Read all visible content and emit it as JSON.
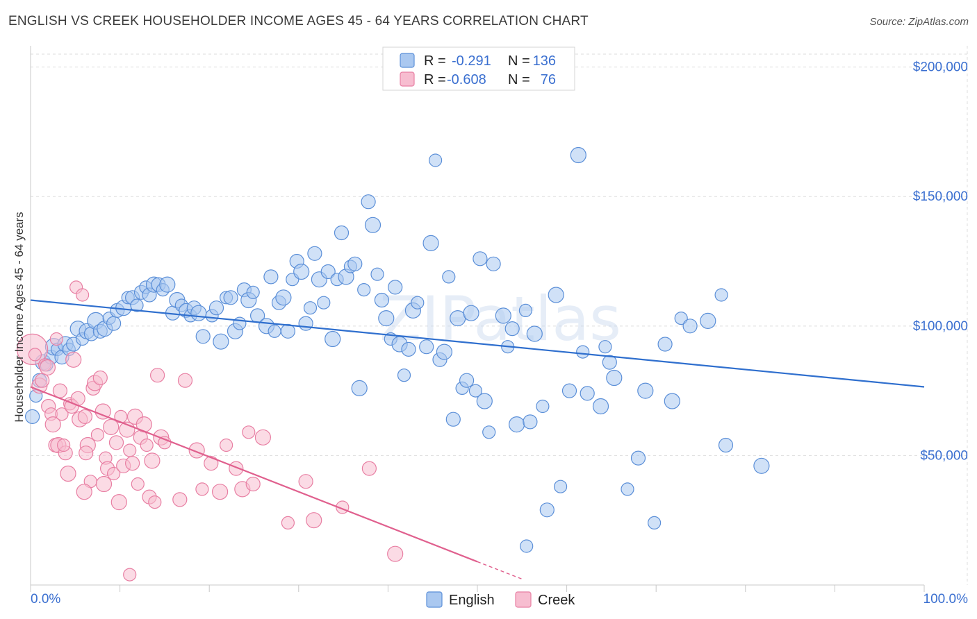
{
  "title": "ENGLISH VS CREEK HOUSEHOLDER INCOME AGES 45 - 64 YEARS CORRELATION CHART",
  "source": "Source: ZipAtlas.com",
  "watermark": "ZIPatlas",
  "colors": {
    "english_fill": "#aac8f0",
    "english_stroke": "#5b8fd8",
    "english_line": "#2f6fce",
    "creek_fill": "#f7bdd0",
    "creek_stroke": "#e87fa3",
    "creek_line": "#e0608e",
    "axis_text": "#3a6fd0",
    "grid": "#dddddd"
  },
  "legend": {
    "rows": [
      {
        "r_label": "R =",
        "r_value": "-0.291",
        "n_label": "N =",
        "n_value": "136"
      },
      {
        "r_label": "R =",
        "r_value": "-0.608",
        "n_label": "N =",
        "n_value": "76"
      }
    ]
  },
  "bottom_legend": [
    "English",
    "Creek"
  ],
  "chart_data": {
    "type": "scatter",
    "title": "ENGLISH VS CREEK HOUSEHOLDER INCOME AGES 45 - 64 YEARS CORRELATION CHART",
    "xlabel": "",
    "ylabel": "Householder Income Ages 45 - 64 years",
    "xlim": [
      0,
      100
    ],
    "ylim": [
      0,
      205000
    ],
    "x_tick_labels": [
      "0.0%",
      "100.0%"
    ],
    "y_ticks": [
      50000,
      100000,
      150000,
      200000
    ],
    "y_tick_labels": [
      "$50,000",
      "$100,000",
      "$150,000",
      "$200,000"
    ],
    "grid": "horizontal dashed",
    "legend_position": "top-center",
    "series": [
      {
        "name": "English",
        "r": -0.291,
        "n": 136,
        "trend": {
          "x": [
            0,
            100
          ],
          "y": [
            110000,
            76500
          ]
        },
        "points": [
          [
            0.2,
            65000,
            10
          ],
          [
            0.6,
            73000,
            9
          ],
          [
            1.0,
            79000,
            10
          ],
          [
            1.4,
            86000,
            11
          ],
          [
            1.8,
            85000,
            9
          ],
          [
            2.3,
            88000,
            10
          ],
          [
            2.6,
            92000,
            12
          ],
          [
            3.0,
            91000,
            9
          ],
          [
            3.5,
            88000,
            10
          ],
          [
            3.9,
            93000,
            11
          ],
          [
            4.3,
            91000,
            9
          ],
          [
            4.8,
            93000,
            10
          ],
          [
            5.3,
            99000,
            11
          ],
          [
            5.8,
            95000,
            9
          ],
          [
            6.3,
            98000,
            11
          ],
          [
            6.8,
            97000,
            10
          ],
          [
            7.3,
            102000,
            12
          ],
          [
            7.8,
            98000,
            10
          ],
          [
            8.3,
            99000,
            11
          ],
          [
            8.8,
            103000,
            9
          ],
          [
            9.3,
            101000,
            10
          ],
          [
            9.7,
            106000,
            10
          ],
          [
            10.4,
            107000,
            11
          ],
          [
            10.9,
            111000,
            9
          ],
          [
            11.4,
            111000,
            10
          ],
          [
            11.9,
            108000,
            9
          ],
          [
            12.4,
            113000,
            10
          ],
          [
            12.9,
            115000,
            9
          ],
          [
            13.3,
            112000,
            10
          ],
          [
            13.8,
            116000,
            11
          ],
          [
            14.3,
            116000,
            10
          ],
          [
            14.8,
            114000,
            9
          ],
          [
            15.3,
            116000,
            11
          ],
          [
            15.9,
            105000,
            10
          ],
          [
            16.4,
            110000,
            11
          ],
          [
            16.9,
            108000,
            9
          ],
          [
            17.4,
            106000,
            10
          ],
          [
            17.9,
            104000,
            9
          ],
          [
            18.3,
            107000,
            10
          ],
          [
            18.8,
            105000,
            11
          ],
          [
            19.3,
            96000,
            10
          ],
          [
            20.3,
            104000,
            9
          ],
          [
            20.8,
            107000,
            10
          ],
          [
            21.3,
            94000,
            11
          ],
          [
            21.9,
            111000,
            9
          ],
          [
            22.4,
            111000,
            10
          ],
          [
            22.9,
            98000,
            11
          ],
          [
            23.4,
            101000,
            9
          ],
          [
            23.9,
            114000,
            10
          ],
          [
            24.4,
            110000,
            11
          ],
          [
            24.9,
            113000,
            9
          ],
          [
            25.4,
            104000,
            10
          ],
          [
            26.4,
            100000,
            11
          ],
          [
            26.9,
            119000,
            10
          ],
          [
            27.3,
            98000,
            9
          ],
          [
            27.8,
            109000,
            10
          ],
          [
            28.3,
            111000,
            11
          ],
          [
            28.8,
            98000,
            10
          ],
          [
            29.3,
            118000,
            9
          ],
          [
            29.8,
            125000,
            10
          ],
          [
            30.3,
            121000,
            11
          ],
          [
            30.8,
            101000,
            10
          ],
          [
            31.3,
            107000,
            9
          ],
          [
            31.8,
            128000,
            10
          ],
          [
            32.3,
            118000,
            11
          ],
          [
            32.8,
            109000,
            9
          ],
          [
            33.3,
            121000,
            10
          ],
          [
            33.8,
            95000,
            11
          ],
          [
            34.3,
            118000,
            9
          ],
          [
            34.8,
            136000,
            10
          ],
          [
            35.3,
            119000,
            11
          ],
          [
            35.8,
            123000,
            9
          ],
          [
            36.3,
            124000,
            10
          ],
          [
            36.8,
            76000,
            11
          ],
          [
            37.3,
            114000,
            9
          ],
          [
            37.8,
            148000,
            10
          ],
          [
            38.3,
            139000,
            11
          ],
          [
            38.8,
            120000,
            9
          ],
          [
            39.3,
            110000,
            10
          ],
          [
            39.8,
            103000,
            11
          ],
          [
            40.3,
            95000,
            9
          ],
          [
            40.8,
            115000,
            10
          ],
          [
            41.3,
            93000,
            11
          ],
          [
            41.8,
            81000,
            9
          ],
          [
            42.3,
            91000,
            10
          ],
          [
            42.8,
            106000,
            11
          ],
          [
            43.3,
            109000,
            9
          ],
          [
            44.3,
            92000,
            10
          ],
          [
            44.8,
            132000,
            11
          ],
          [
            45.3,
            164000,
            9
          ],
          [
            45.8,
            87000,
            10
          ],
          [
            46.3,
            90000,
            11
          ],
          [
            46.8,
            119000,
            9
          ],
          [
            47.3,
            64000,
            10
          ],
          [
            47.8,
            103000,
            11
          ],
          [
            48.3,
            76000,
            9
          ],
          [
            48.8,
            79000,
            10
          ],
          [
            49.3,
            105000,
            11
          ],
          [
            49.8,
            75000,
            9
          ],
          [
            50.3,
            126000,
            10
          ],
          [
            50.8,
            71000,
            11
          ],
          [
            51.3,
            59000,
            9
          ],
          [
            51.8,
            124000,
            10
          ],
          [
            52.9,
            104000,
            11
          ],
          [
            53.4,
            92000,
            9
          ],
          [
            53.9,
            99000,
            10
          ],
          [
            54.4,
            62000,
            11
          ],
          [
            55.4,
            106000,
            9
          ],
          [
            55.9,
            63000,
            10
          ],
          [
            56.4,
            97000,
            11
          ],
          [
            57.3,
            69000,
            9
          ],
          [
            57.8,
            29000,
            10
          ],
          [
            58.8,
            112000,
            11
          ],
          [
            59.3,
            38000,
            9
          ],
          [
            60.3,
            75000,
            10
          ],
          [
            61.3,
            166000,
            11
          ],
          [
            61.8,
            90000,
            9
          ],
          [
            62.3,
            74000,
            10
          ],
          [
            63.8,
            69000,
            11
          ],
          [
            64.3,
            92000,
            9
          ],
          [
            64.8,
            86000,
            10
          ],
          [
            65.3,
            80000,
            11
          ],
          [
            66.8,
            37000,
            9
          ],
          [
            68.0,
            49000,
            10
          ],
          [
            68.8,
            75000,
            11
          ],
          [
            69.8,
            24000,
            9
          ],
          [
            71.0,
            93000,
            10
          ],
          [
            71.8,
            71000,
            11
          ],
          [
            72.8,
            103000,
            9
          ],
          [
            73.8,
            100000,
            10
          ],
          [
            75.8,
            102000,
            11
          ],
          [
            77.3,
            112000,
            9
          ],
          [
            77.8,
            54000,
            10
          ],
          [
            81.8,
            46000,
            11
          ],
          [
            55.5,
            15000,
            9
          ]
        ]
      },
      {
        "name": "Creek",
        "r": -0.608,
        "n": 76,
        "trend": {
          "x": [
            0,
            50
          ],
          "y": [
            76500,
            9000
          ]
        },
        "trend_dashed": {
          "x": [
            50,
            55
          ],
          "y": [
            9000,
            2300
          ]
        },
        "points": [
          [
            0.2,
            91000,
            22
          ],
          [
            0.5,
            89000,
            9
          ],
          [
            1.0,
            77000,
            11
          ],
          [
            1.3,
            79000,
            10
          ],
          [
            1.6,
            85000,
            9
          ],
          [
            1.9,
            84000,
            11
          ],
          [
            2.0,
            69000,
            10
          ],
          [
            2.3,
            66000,
            9
          ],
          [
            2.5,
            62000,
            11
          ],
          [
            2.8,
            54000,
            10
          ],
          [
            2.9,
            95000,
            9
          ],
          [
            3.1,
            54000,
            11
          ],
          [
            3.3,
            75000,
            10
          ],
          [
            3.5,
            66000,
            9
          ],
          [
            3.9,
            51000,
            10
          ],
          [
            4.2,
            43000,
            11
          ],
          [
            4.4,
            70000,
            9
          ],
          [
            4.6,
            69000,
            10
          ],
          [
            4.8,
            87000,
            11
          ],
          [
            5.1,
            115000,
            9
          ],
          [
            5.3,
            72000,
            10
          ],
          [
            5.5,
            64000,
            11
          ],
          [
            5.8,
            112000,
            9
          ],
          [
            6.1,
            65000,
            10
          ],
          [
            6.4,
            54000,
            11
          ],
          [
            6.7,
            40000,
            9
          ],
          [
            7.0,
            76000,
            10
          ],
          [
            7.2,
            78000,
            11
          ],
          [
            7.5,
            58000,
            9
          ],
          [
            7.8,
            80000,
            10
          ],
          [
            8.1,
            67000,
            11
          ],
          [
            8.4,
            49000,
            9
          ],
          [
            8.6,
            45000,
            10
          ],
          [
            9.0,
            61000,
            11
          ],
          [
            9.3,
            43000,
            9
          ],
          [
            9.6,
            55000,
            10
          ],
          [
            9.9,
            32000,
            11
          ],
          [
            10.1,
            65000,
            9
          ],
          [
            10.4,
            46000,
            10
          ],
          [
            10.8,
            60000,
            11
          ],
          [
            11.1,
            52000,
            9
          ],
          [
            11.4,
            47000,
            10
          ],
          [
            11.7,
            65000,
            11
          ],
          [
            12.0,
            39000,
            9
          ],
          [
            12.3,
            57000,
            10
          ],
          [
            12.7,
            62000,
            11
          ],
          [
            13.0,
            54000,
            9
          ],
          [
            13.3,
            34000,
            10
          ],
          [
            13.6,
            48000,
            11
          ],
          [
            13.9,
            32000,
            9
          ],
          [
            14.2,
            81000,
            10
          ],
          [
            14.6,
            57000,
            11
          ],
          [
            15.0,
            55000,
            9
          ],
          [
            17.3,
            79000,
            10
          ],
          [
            18.6,
            52000,
            11
          ],
          [
            19.2,
            37000,
            9
          ],
          [
            20.2,
            47000,
            10
          ],
          [
            21.2,
            36000,
            11
          ],
          [
            21.9,
            54000,
            9
          ],
          [
            23.0,
            45000,
            10
          ],
          [
            23.7,
            37000,
            11
          ],
          [
            24.4,
            59000,
            9
          ],
          [
            24.9,
            39000,
            10
          ],
          [
            26.0,
            57000,
            11
          ],
          [
            28.8,
            24000,
            9
          ],
          [
            30.8,
            40000,
            10
          ],
          [
            31.7,
            25000,
            11
          ],
          [
            34.9,
            30000,
            9
          ],
          [
            37.9,
            45000,
            10
          ],
          [
            40.8,
            12000,
            11
          ],
          [
            11.1,
            4000,
            9
          ],
          [
            6.2,
            51000,
            10
          ],
          [
            8.2,
            39000,
            11
          ],
          [
            3.7,
            54000,
            9
          ],
          [
            16.7,
            33000,
            10
          ],
          [
            6.0,
            36000,
            11
          ]
        ]
      }
    ]
  }
}
